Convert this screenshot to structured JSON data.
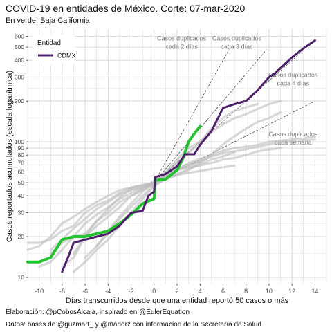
{
  "title": "COVID-19 en entidades de México. Corte: 07-mar-2020",
  "subtitle": "En verde: Baja California",
  "caption_1": "Elaboración: @pCobosAlcala, inspirado en @EulerEquation",
  "caption_2": "Datos: bases de @guzmart_ y @mariorz con información de la Secretaría de Salud",
  "colors": {
    "panel": "#ffffff",
    "grid": "#d6d6d6",
    "background_series": "#bdbdbd",
    "highlight": "#22c32e",
    "cdmx": "#4d1f69",
    "reference_line": "#333333",
    "annotation_text": "#7a7a7a"
  },
  "chart_data": {
    "type": "line",
    "title": "COVID-19 en entidades de México. Corte: 07-mar-2020",
    "subtitle": "En verde: Baja California",
    "xlabel": "Días transcurridos desde que una entidad reportó 50 casos o más",
    "ylabel": "Casos reportados acumulados (escala logarítmica)",
    "y_scale": "log",
    "xlim": [
      -11,
      15
    ],
    "ylim": [
      9,
      680
    ],
    "x_ticks": [
      -10,
      -8,
      -6,
      -4,
      -2,
      0,
      2,
      4,
      6,
      8,
      10,
      12,
      14
    ],
    "y_ticks": [
      10,
      20,
      30,
      40,
      50,
      60,
      70,
      80,
      90,
      100,
      200,
      300,
      400,
      500,
      600
    ],
    "grid": true,
    "legend": {
      "title": "Entidad",
      "placement": "top-left",
      "entries": [
        "CDMX"
      ]
    },
    "series": [
      {
        "name": "CDMX",
        "role": "legend",
        "points": [
          [
            -8,
            11
          ],
          [
            -7.5,
            14
          ],
          [
            -7,
            18
          ],
          [
            -6,
            19
          ],
          [
            -5,
            20
          ],
          [
            -4,
            21
          ],
          [
            -3,
            24
          ],
          [
            -2,
            30
          ],
          [
            -1,
            31
          ],
          [
            -0.5,
            40
          ],
          [
            0,
            43
          ],
          [
            0.1,
            55
          ],
          [
            1,
            58
          ],
          [
            2,
            66
          ],
          [
            2.7,
            81
          ],
          [
            3.5,
            81
          ],
          [
            4,
            95
          ],
          [
            5,
            120
          ],
          [
            6,
            178
          ],
          [
            7,
            190
          ],
          [
            8,
            200
          ],
          [
            9,
            240
          ],
          [
            10,
            300
          ],
          [
            10.5,
            320
          ],
          [
            11,
            350
          ],
          [
            12,
            420
          ],
          [
            13,
            490
          ],
          [
            14,
            560
          ]
        ]
      },
      {
        "name": "Baja California",
        "role": "highlight",
        "points": [
          [
            -11,
            13
          ],
          [
            -10,
            13
          ],
          [
            -9,
            14
          ],
          [
            -8,
            19
          ],
          [
            -7,
            20
          ],
          [
            -6,
            20
          ],
          [
            -5,
            21
          ],
          [
            -4,
            22
          ],
          [
            -3,
            25
          ],
          [
            -2,
            29
          ],
          [
            -1,
            35
          ],
          [
            0,
            38
          ],
          [
            0.1,
            52
          ],
          [
            1,
            53
          ],
          [
            2,
            62
          ],
          [
            2.5,
            75
          ],
          [
            3,
            100
          ],
          [
            3.5,
            115
          ],
          [
            4,
            130
          ]
        ]
      },
      {
        "role": "other",
        "points": [
          [
            -11,
            18
          ],
          [
            -10,
            18
          ],
          [
            -9,
            19
          ],
          [
            -8,
            22
          ],
          [
            -7,
            24
          ],
          [
            -6,
            30
          ],
          [
            -5,
            34
          ],
          [
            -4,
            37
          ],
          [
            -3,
            42
          ],
          [
            -2,
            46
          ],
          [
            -1,
            48
          ],
          [
            0,
            50
          ],
          [
            1,
            56
          ],
          [
            2,
            70
          ],
          [
            3,
            82
          ],
          [
            4,
            100
          ],
          [
            5,
            125
          ],
          [
            6,
            150
          ],
          [
            7,
            170
          ],
          [
            8,
            180
          ],
          [
            9,
            190
          ]
        ]
      },
      {
        "role": "other",
        "points": [
          [
            -9,
            15
          ],
          [
            -8,
            18
          ],
          [
            -7,
            20
          ],
          [
            -6,
            21
          ],
          [
            -5,
            26
          ],
          [
            -4,
            32
          ],
          [
            -3,
            39
          ],
          [
            -2,
            45
          ],
          [
            -1,
            47
          ],
          [
            0,
            49
          ],
          [
            1,
            55
          ],
          [
            2,
            62
          ],
          [
            3,
            66
          ],
          [
            4,
            72
          ],
          [
            5,
            78
          ],
          [
            6,
            83
          ],
          [
            7,
            85
          ],
          [
            8,
            88
          ],
          [
            9,
            92
          ],
          [
            10,
            96
          ],
          [
            11,
            99
          ],
          [
            12,
            101
          ],
          [
            13,
            103
          ],
          [
            14,
            104
          ]
        ]
      },
      {
        "role": "other",
        "points": [
          [
            -11,
            16
          ],
          [
            -10,
            17
          ],
          [
            -9,
            20
          ],
          [
            -8,
            25
          ],
          [
            -7,
            28
          ],
          [
            -6,
            32
          ],
          [
            -5,
            36
          ],
          [
            -4,
            40
          ],
          [
            -3,
            44
          ],
          [
            -2,
            46
          ],
          [
            -1,
            48
          ],
          [
            0,
            50
          ],
          [
            1,
            60
          ],
          [
            2,
            74
          ],
          [
            3,
            90
          ],
          [
            4,
            100
          ],
          [
            5,
            118
          ],
          [
            6,
            135
          ],
          [
            7,
            150
          ],
          [
            8,
            160
          ],
          [
            9,
            175
          ],
          [
            10,
            190
          ],
          [
            11,
            200
          ]
        ]
      },
      {
        "role": "other",
        "points": [
          [
            -10,
            12
          ],
          [
            -9,
            13
          ],
          [
            -8,
            16
          ],
          [
            -7,
            20
          ],
          [
            -6,
            25
          ],
          [
            -5,
            29
          ],
          [
            -4,
            33
          ],
          [
            -3,
            38
          ],
          [
            -2,
            42
          ],
          [
            -1,
            46
          ],
          [
            0,
            49
          ],
          [
            1,
            53
          ],
          [
            2,
            57
          ],
          [
            3,
            59
          ],
          [
            4,
            61
          ],
          [
            5,
            63
          ],
          [
            6,
            65
          ],
          [
            7,
            67
          ]
        ]
      },
      {
        "role": "other",
        "points": [
          [
            -8,
            12
          ],
          [
            -7,
            14
          ],
          [
            -6,
            20
          ],
          [
            -5,
            24
          ],
          [
            -4,
            28
          ],
          [
            -3,
            33
          ],
          [
            -2,
            40
          ],
          [
            -1,
            44
          ],
          [
            0,
            52
          ],
          [
            1,
            56
          ],
          [
            2,
            62
          ],
          [
            3,
            70
          ],
          [
            4,
            75
          ],
          [
            5,
            80
          ],
          [
            6,
            86
          ],
          [
            7,
            90
          ],
          [
            8,
            92
          ],
          [
            9,
            95
          ],
          [
            10,
            100
          ],
          [
            11,
            102
          ],
          [
            12,
            104
          ],
          [
            13,
            106
          ],
          [
            14,
            110
          ]
        ]
      },
      {
        "role": "other",
        "points": [
          [
            -7,
            11
          ],
          [
            -6,
            13
          ],
          [
            -5,
            16
          ],
          [
            -4,
            19
          ],
          [
            -3,
            24
          ],
          [
            -2,
            30
          ],
          [
            -1,
            38
          ],
          [
            0,
            47
          ],
          [
            1,
            54
          ],
          [
            2,
            58
          ],
          [
            3,
            63
          ],
          [
            4,
            68
          ],
          [
            5,
            74
          ],
          [
            6,
            78
          ],
          [
            7,
            84
          ]
        ]
      },
      {
        "role": "other",
        "points": [
          [
            -6,
            14
          ],
          [
            -5,
            17
          ],
          [
            -4,
            22
          ],
          [
            -3,
            28
          ],
          [
            -2,
            35
          ],
          [
            -1,
            43
          ],
          [
            0,
            50
          ],
          [
            1,
            57
          ],
          [
            2,
            63
          ],
          [
            3,
            68
          ],
          [
            4,
            72
          ]
        ]
      },
      {
        "role": "other",
        "points": [
          [
            -7,
            15
          ],
          [
            -6,
            20
          ],
          [
            -5,
            26
          ],
          [
            -4,
            30
          ],
          [
            -3,
            36
          ],
          [
            -2,
            40
          ],
          [
            -1,
            45
          ],
          [
            0,
            48
          ],
          [
            1,
            53
          ],
          [
            2,
            57
          ],
          [
            3,
            62
          ],
          [
            4,
            70
          ],
          [
            5,
            80
          ],
          [
            6,
            96
          ],
          [
            7,
            110
          ],
          [
            8,
            125
          ],
          [
            9,
            140
          ],
          [
            10,
            150
          ],
          [
            11,
            165
          ]
        ]
      },
      {
        "role": "other",
        "points": [
          [
            -5,
            17
          ],
          [
            -4,
            21
          ],
          [
            -3,
            27
          ],
          [
            -2,
            33
          ],
          [
            -1,
            40
          ],
          [
            0,
            48
          ],
          [
            1,
            55
          ],
          [
            2,
            62
          ],
          [
            3,
            65
          ],
          [
            4,
            67
          ],
          [
            5,
            70
          ],
          [
            6,
            74
          ],
          [
            7,
            76
          ],
          [
            8,
            80
          ],
          [
            9,
            85
          ],
          [
            10,
            88
          ],
          [
            11,
            90
          ]
        ]
      },
      {
        "role": "other",
        "points": [
          [
            -9,
            16
          ],
          [
            -8,
            19
          ],
          [
            -7,
            23
          ],
          [
            -6,
            27
          ],
          [
            -5,
            32
          ],
          [
            -4,
            36
          ],
          [
            -3,
            41
          ],
          [
            -2,
            44
          ],
          [
            -1,
            46
          ],
          [
            0,
            49
          ]
        ]
      }
    ],
    "reference_lines": [
      {
        "label_lines": [
          "Casos duplicados",
          "cada 2 días"
        ],
        "doubling_days": 2
      },
      {
        "label_lines": [
          "Casos duplicados",
          "cada 3 días"
        ],
        "doubling_days": 3
      },
      {
        "label_lines": [
          "Casos duplicados",
          "cada 4 días"
        ],
        "doubling_days": 4
      },
      {
        "label_lines": [
          "Casos duplicados",
          "cada semana"
        ],
        "doubling_days": 7
      }
    ]
  }
}
